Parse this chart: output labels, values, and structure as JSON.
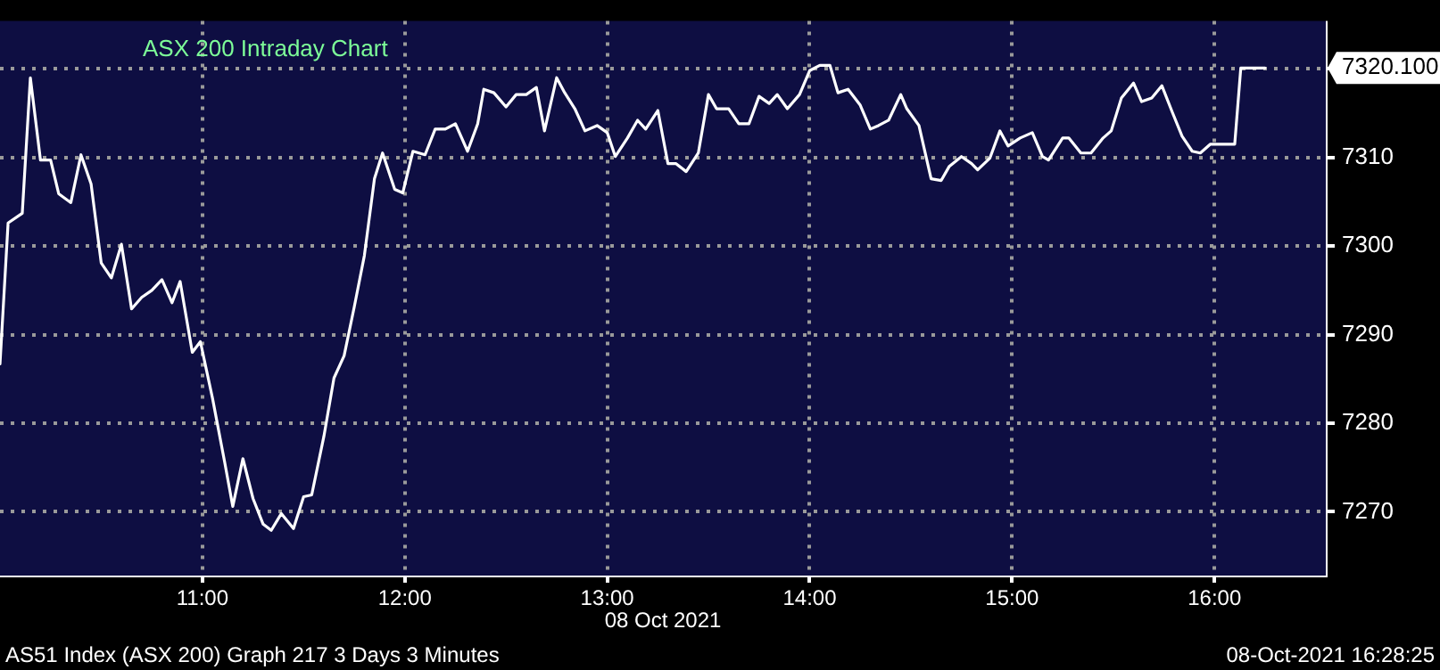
{
  "chart_data": {
    "type": "line",
    "title": "ASX 200 Intraday Chart",
    "xlabel": "08 Oct 2021",
    "x": [
      10.0,
      10.04,
      10.11,
      10.15,
      10.2,
      10.25,
      10.29,
      10.35,
      10.4,
      10.45,
      10.5,
      10.55,
      10.6,
      10.65,
      10.7,
      10.75,
      10.8,
      10.85,
      10.89,
      10.95,
      10.99,
      11.05,
      11.11,
      11.15,
      11.2,
      11.25,
      11.3,
      11.34,
      11.39,
      11.45,
      11.5,
      11.54,
      11.6,
      11.65,
      11.7,
      11.75,
      11.8,
      11.85,
      11.89,
      11.95,
      11.99,
      12.04,
      12.1,
      12.15,
      12.2,
      12.25,
      12.31,
      12.36,
      12.39,
      12.44,
      12.5,
      12.55,
      12.6,
      12.65,
      12.69,
      12.75,
      12.79,
      12.84,
      12.89,
      12.95,
      13.0,
      13.04,
      13.1,
      13.15,
      13.19,
      13.25,
      13.3,
      13.34,
      13.39,
      13.45,
      13.5,
      13.54,
      13.6,
      13.65,
      13.7,
      13.75,
      13.8,
      13.84,
      13.89,
      13.95,
      14.0,
      14.05,
      14.1,
      14.14,
      14.19,
      14.25,
      14.3,
      14.34,
      14.39,
      14.45,
      14.48,
      14.54,
      14.6,
      14.65,
      14.69,
      14.75,
      14.8,
      14.83,
      14.89,
      14.94,
      14.98,
      15.04,
      15.1,
      15.15,
      15.18,
      15.25,
      15.28,
      15.34,
      15.39,
      15.45,
      15.49,
      15.54,
      15.6,
      15.64,
      15.69,
      15.74,
      15.79,
      15.84,
      15.89,
      15.93,
      15.98,
      16.1,
      16.13,
      16.25
    ],
    "series": [
      {
        "color": "#ffffff",
        "values": [
          7286.7,
          7302.6,
          7303.7,
          7319,
          7309.7,
          7309.7,
          7305.9,
          7304.9,
          7310.3,
          7307,
          7298.1,
          7296.4,
          7300.2,
          7292.9,
          7294.2,
          7295,
          7296.2,
          7293.6,
          7296,
          7288,
          7289.2,
          7282.8,
          7275.6,
          7270.6,
          7276,
          7271.5,
          7268.6,
          7267.9,
          7269.8,
          7268.1,
          7271.7,
          7271.9,
          7278.5,
          7285.1,
          7287.6,
          7293.1,
          7298.9,
          7307.6,
          7310.5,
          7306.4,
          7306,
          7310.7,
          7310.3,
          7313.2,
          7313.2,
          7313.8,
          7310.7,
          7313.8,
          7317.7,
          7317.3,
          7315.7,
          7317.1,
          7317.1,
          7317.9,
          7313,
          7319,
          7317.3,
          7315.5,
          7313,
          7313.6,
          7312.8,
          7310.1,
          7312.2,
          7314.2,
          7313.2,
          7315.3,
          7309.3,
          7309.3,
          7308.4,
          7310.5,
          7317.1,
          7315.5,
          7315.5,
          7313.8,
          7313.8,
          7316.9,
          7316.1,
          7317.1,
          7315.5,
          7317.1,
          7319.8,
          7320.4,
          7320.4,
          7317.3,
          7317.7,
          7315.9,
          7313.2,
          7313.6,
          7314.2,
          7317.1,
          7315.5,
          7313.6,
          7307.6,
          7307.4,
          7309,
          7310.1,
          7309.3,
          7308.6,
          7309.9,
          7313,
          7311.3,
          7312.2,
          7312.8,
          7310.1,
          7309.7,
          7312.2,
          7312.2,
          7310.5,
          7310.5,
          7312.2,
          7313,
          7316.7,
          7318.4,
          7316.3,
          7316.7,
          7318.1,
          7315.2,
          7312.4,
          7310.7,
          7310.5,
          7311.5,
          7311.5,
          7320.1,
          7320.1
        ]
      }
    ],
    "xlim": [
      10.0,
      16.55
    ],
    "xticks": [
      {
        "value": 11,
        "label": "11:00"
      },
      {
        "value": 12,
        "label": "12:00"
      },
      {
        "value": 13,
        "label": "13:00"
      },
      {
        "value": 14,
        "label": "14:00"
      },
      {
        "value": 15,
        "label": "15:00"
      },
      {
        "value": 16,
        "label": "16:00"
      }
    ],
    "ylim": [
      7262.8,
      7325.4
    ],
    "yticks": [
      7270,
      7280,
      7290,
      7300,
      7310,
      {
        "value": 7320,
        "label": null
      }
    ],
    "grid": true,
    "legend": false,
    "marker": "none",
    "line_style": "solid",
    "annotations": [
      "7320.100",
      "AS51 Index (ASX 200) Graph 217 3 Days 3 Minutes",
      "08-Oct-2021 16:28:25"
    ]
  }
}
